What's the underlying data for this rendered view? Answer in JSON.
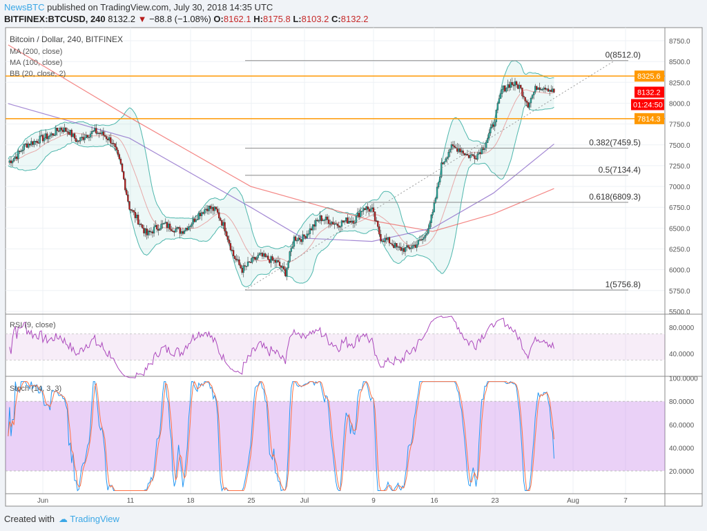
{
  "header": {
    "publisher": "NewsBTC",
    "published": "published on TradingView.com, July 30, 2018 14:35 UTC",
    "symbol": "BITFINEX:BTCUSD, 240",
    "last": "8132.2",
    "change": "−88.8 (−1.08%)",
    "o_label": "O:",
    "o": "8162.1",
    "h_label": "H:",
    "h": "8175.8",
    "l_label": "L:",
    "l": "8103.2",
    "c_label": "C:",
    "c": "8132.2"
  },
  "footer": {
    "created": "Created with",
    "brand": "TradingView"
  },
  "chart_data": [
    {
      "type": "candlestick",
      "title": "Bitcoin / Dollar, 240, BITFINEX",
      "legend": [
        "MA (200, close)",
        "MA (100, close)",
        "BB (20, close, 2)"
      ],
      "x_ticks": [
        "Jun",
        "11",
        "18",
        "25",
        "Jul",
        "9",
        "16",
        "23",
        "Aug",
        "7"
      ],
      "y_ticks": [
        5500,
        5750,
        6000,
        6250,
        6500,
        6750,
        7000,
        7250,
        7500,
        7750,
        8000,
        8250,
        8500,
        8750
      ],
      "ylim": [
        5450,
        8900
      ],
      "daily_close": [
        [
          "2018-05-28",
          7290
        ],
        [
          "2018-05-29",
          7370
        ],
        [
          "2018-05-30",
          7500
        ],
        [
          "2018-05-31",
          7540
        ],
        [
          "2018-06-01",
          7580
        ],
        [
          "2018-06-02",
          7620
        ],
        [
          "2018-06-03",
          7700
        ],
        [
          "2018-06-04",
          7660
        ],
        [
          "2018-06-05",
          7540
        ],
        [
          "2018-06-06",
          7620
        ],
        [
          "2018-06-07",
          7660
        ],
        [
          "2018-06-08",
          7620
        ],
        [
          "2018-06-09",
          7540
        ],
        [
          "2018-06-10",
          7250
        ],
        [
          "2018-06-11",
          6750
        ],
        [
          "2018-06-12",
          6590
        ],
        [
          "2018-06-13",
          6420
        ],
        [
          "2018-06-14",
          6500
        ],
        [
          "2018-06-15",
          6545
        ],
        [
          "2018-06-16",
          6500
        ],
        [
          "2018-06-17",
          6460
        ],
        [
          "2018-06-18",
          6545
        ],
        [
          "2018-06-19",
          6670
        ],
        [
          "2018-06-20",
          6750
        ],
        [
          "2018-06-21",
          6710
        ],
        [
          "2018-06-22",
          6500
        ],
        [
          "2018-06-23",
          6170
        ],
        [
          "2018-06-24",
          6000
        ],
        [
          "2018-06-25",
          6090
        ],
        [
          "2018-06-26",
          6170
        ],
        [
          "2018-06-27",
          6130
        ],
        [
          "2018-06-28",
          6090
        ],
        [
          "2018-06-29",
          5965
        ],
        [
          "2018-06-30",
          6380
        ],
        [
          "2018-07-01",
          6380
        ],
        [
          "2018-07-02",
          6500
        ],
        [
          "2018-07-03",
          6620
        ],
        [
          "2018-07-04",
          6590
        ],
        [
          "2018-07-05",
          6545
        ],
        [
          "2018-07-06",
          6590
        ],
        [
          "2018-07-07",
          6600
        ],
        [
          "2018-07-08",
          6750
        ],
        [
          "2018-07-09",
          6710
        ],
        [
          "2018-07-10",
          6380
        ],
        [
          "2018-07-11",
          6340
        ],
        [
          "2018-07-12",
          6250
        ],
        [
          "2018-07-13",
          6250
        ],
        [
          "2018-07-14",
          6300
        ],
        [
          "2018-07-15",
          6380
        ],
        [
          "2018-07-16",
          6670
        ],
        [
          "2018-07-17",
          7250
        ],
        [
          "2018-07-18",
          7460
        ],
        [
          "2018-07-19",
          7460
        ],
        [
          "2018-07-20",
          7370
        ],
        [
          "2018-07-21",
          7370
        ],
        [
          "2018-07-22",
          7500
        ],
        [
          "2018-07-23",
          7750
        ],
        [
          "2018-07-24",
          8160
        ],
        [
          "2018-07-25",
          8240
        ],
        [
          "2018-07-26",
          8200
        ],
        [
          "2018-07-27",
          7990
        ],
        [
          "2018-07-28",
          8200
        ],
        [
          "2018-07-29",
          8200
        ],
        [
          "2018-07-30",
          8132.2
        ]
      ],
      "ma200": [
        [
          "2018-05-28",
          8700
        ],
        [
          "2018-06-11",
          7830
        ],
        [
          "2018-06-25",
          7000
        ],
        [
          "2018-07-09",
          6590
        ],
        [
          "2018-07-16",
          6460
        ],
        [
          "2018-07-23",
          6670
        ],
        [
          "2018-07-30",
          6975
        ]
      ],
      "ma100": [
        [
          "2018-05-28",
          7995
        ],
        [
          "2018-06-11",
          7580
        ],
        [
          "2018-06-25",
          6750
        ],
        [
          "2018-07-01",
          6380
        ],
        [
          "2018-07-09",
          6340
        ],
        [
          "2018-07-16",
          6500
        ],
        [
          "2018-07-23",
          6920
        ],
        [
          "2018-07-30",
          7510
        ]
      ],
      "fib_levels": [
        {
          "label": "0(8512.0)",
          "value": 8512.0
        },
        {
          "label": "0.382(7459.5)",
          "value": 7459.5
        },
        {
          "label": "0.5(7134.4)",
          "value": 7134.4
        },
        {
          "label": "0.618(6809.3)",
          "value": 6809.3
        },
        {
          "label": "1(5756.8)",
          "value": 5756.8
        }
      ],
      "horizontal_lines": [
        {
          "label": "8325.6",
          "value": 8325.6
        },
        {
          "label": "7814.3",
          "value": 7814.3
        }
      ],
      "price_label": "8132.2",
      "countdown": "01:24:50",
      "colors": {
        "up": "#26a69a",
        "down": "#b71c1c",
        "ma200": "#ef5350",
        "ma100": "#7e57c2",
        "bb": "#4db6ac",
        "hline": "#ff9800",
        "price": "#ff0000"
      }
    },
    {
      "type": "line",
      "title": "RSI (9, close)",
      "y_ticks": [
        "80.0000",
        "40.0000"
      ],
      "band": [
        30,
        70
      ],
      "ylim": [
        0,
        100
      ]
    },
    {
      "type": "line",
      "title": "Stoch (14, 3, 3)",
      "y_ticks": [
        "100.0000",
        "80.0000",
        "60.0000",
        "40.0000",
        "20.0000"
      ],
      "band": [
        20,
        80
      ],
      "ylim": [
        0,
        100
      ]
    }
  ]
}
